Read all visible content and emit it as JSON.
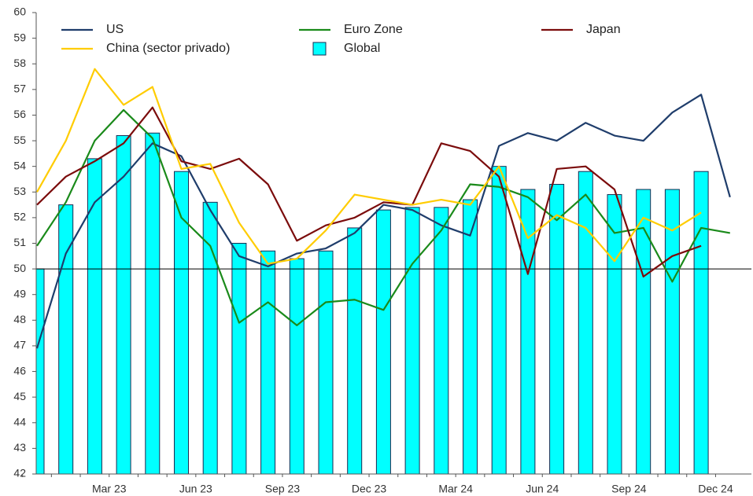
{
  "chart_data": {
    "type": "bar_line",
    "categories": [
      null,
      null,
      null,
      "Mar 23",
      null,
      null,
      "Jun 23",
      null,
      null,
      "Sep 23",
      null,
      null,
      "Dec 23",
      null,
      null,
      "Mar 24",
      null,
      null,
      "Jun 24",
      null,
      null,
      "Sep 24",
      null,
      null,
      "Dec 24"
    ],
    "series": [
      {
        "name": "US",
        "type": "line",
        "color": "#1f3d6b",
        "values": [
          46.9,
          50.6,
          52.6,
          53.6,
          54.9,
          54.4,
          52.3,
          50.5,
          50.1,
          50.6,
          50.8,
          51.4,
          52.5,
          52.3,
          51.7,
          51.3,
          54.8,
          55.3,
          55.0,
          55.7,
          55.2,
          55.0,
          56.1,
          56.8,
          52.8
        ]
      },
      {
        "name": "Euro Zone",
        "type": "line",
        "color": "#1a8a1a",
        "values": [
          50.9,
          52.6,
          55.0,
          56.2,
          55.1,
          52.0,
          50.9,
          47.9,
          48.7,
          47.8,
          48.7,
          48.8,
          48.4,
          50.2,
          51.5,
          53.3,
          53.2,
          52.8,
          51.9,
          52.9,
          51.4,
          51.6,
          49.5,
          51.6,
          51.4
        ]
      },
      {
        "name": "Japan",
        "type": "line",
        "color": "#7b0c0c",
        "values": [
          52.5,
          53.6,
          54.2,
          54.9,
          56.3,
          54.2,
          53.9,
          54.3,
          53.3,
          51.1,
          51.7,
          52.0,
          52.6,
          52.5,
          54.9,
          54.6,
          53.6,
          49.8,
          53.9,
          54.0,
          53.1,
          49.7,
          50.5,
          50.9,
          null
        ]
      },
      {
        "name": "China (sector privado)",
        "type": "line",
        "color": "#ffcc00",
        "values": [
          53.0,
          55.0,
          57.8,
          56.4,
          57.1,
          53.9,
          54.1,
          51.8,
          50.2,
          50.4,
          51.5,
          52.9,
          52.7,
          52.5,
          52.7,
          52.5,
          54.0,
          51.2,
          52.1,
          51.6,
          50.3,
          52.0,
          51.5,
          52.2,
          null
        ]
      },
      {
        "name": "Global",
        "type": "bar",
        "color": "#00ffff",
        "values": [
          50.0,
          52.5,
          54.3,
          55.2,
          55.3,
          53.8,
          52.6,
          51.0,
          50.7,
          50.4,
          50.7,
          51.6,
          52.3,
          52.4,
          52.4,
          52.7,
          54.0,
          53.1,
          53.3,
          53.8,
          52.9,
          53.1,
          53.1,
          53.8,
          null
        ]
      }
    ],
    "ylim": [
      42,
      60
    ],
    "yticks": [
      42,
      43,
      44,
      45,
      46,
      47,
      48,
      49,
      50,
      51,
      52,
      53,
      54,
      55,
      56,
      57,
      58,
      59,
      60
    ],
    "reference_line": 50,
    "grid": false
  }
}
